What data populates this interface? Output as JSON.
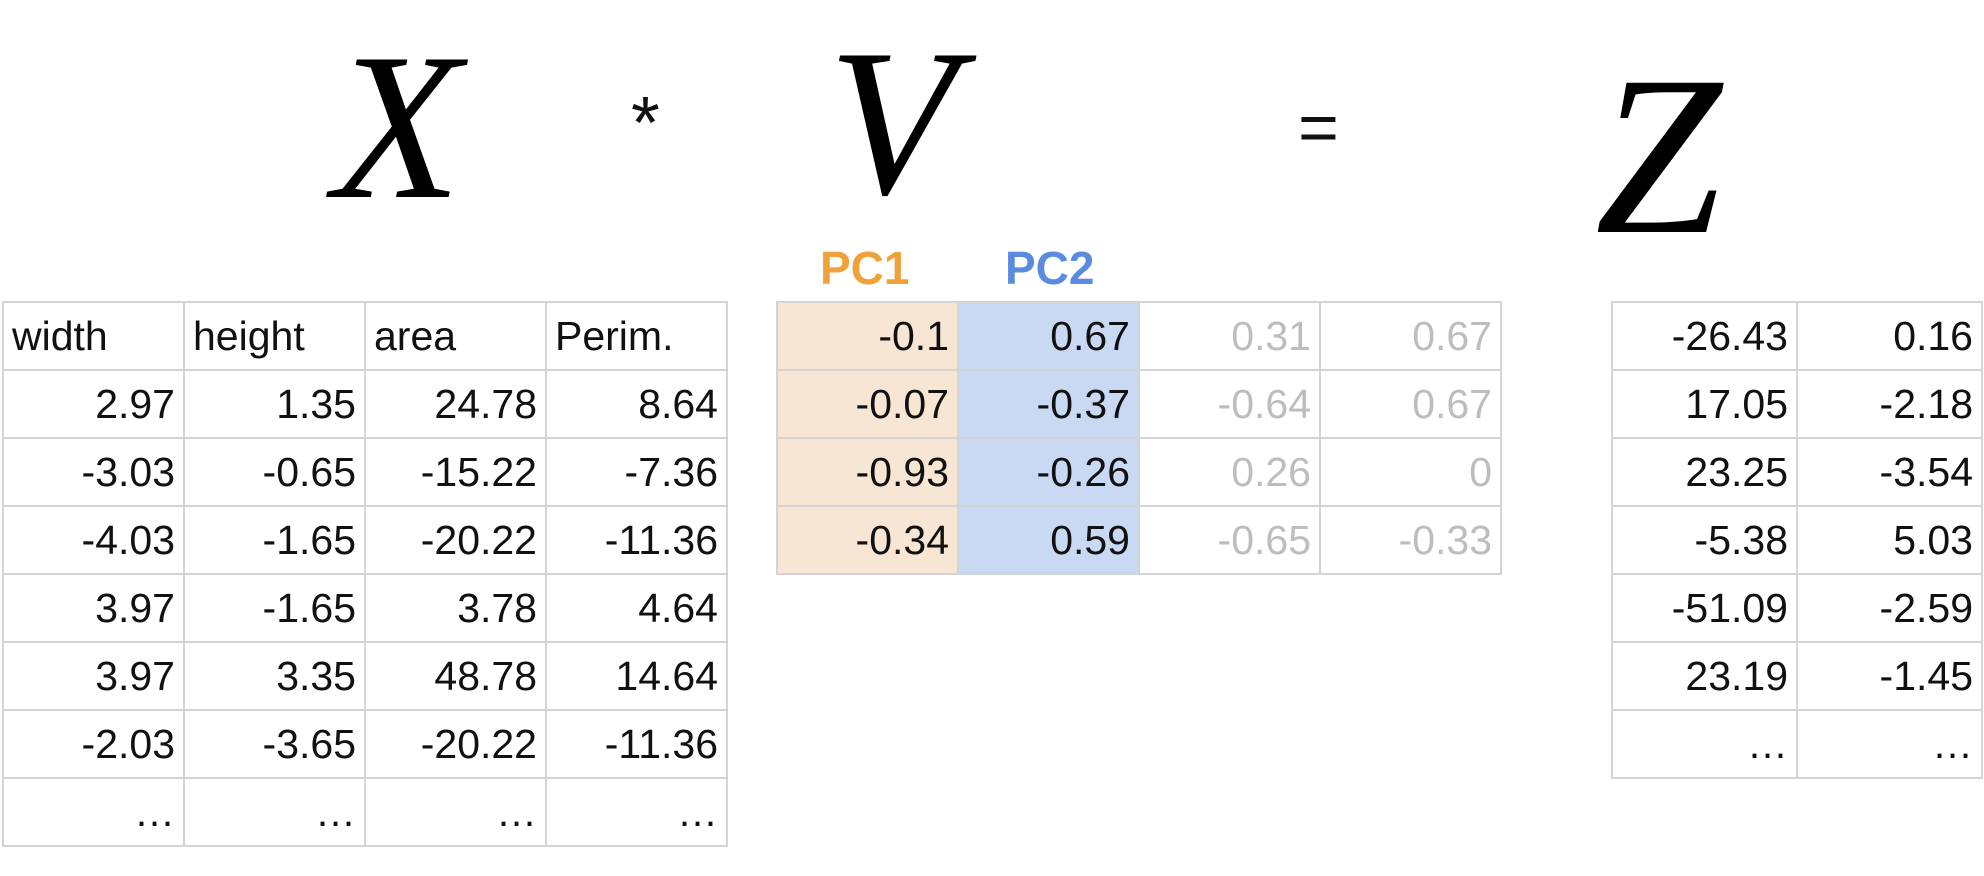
{
  "equation": {
    "lhs_symbol": "X",
    "operator": "*",
    "matrix_symbol": "V",
    "equals": "=",
    "rhs_symbol": "Z"
  },
  "pc_labels": {
    "pc1": "PC1",
    "pc2": "PC2"
  },
  "colors": {
    "pc1_text": "#f0a23a",
    "pc1_fill": "#f7e6d3",
    "pc2_text": "#5b8be0",
    "pc2_fill": "#c9d8f3",
    "muted_text": "#bdbdbd",
    "grid_line": "#d4d4d4"
  },
  "table_x": {
    "headers": [
      "width",
      "height",
      "area",
      "Perim."
    ],
    "rows": [
      [
        "2.97",
        "1.35",
        "24.78",
        "8.64"
      ],
      [
        "-3.03",
        "-0.65",
        "-15.22",
        "-7.36"
      ],
      [
        "-4.03",
        "-1.65",
        "-20.22",
        "-11.36"
      ],
      [
        "3.97",
        "-1.65",
        "3.78",
        "4.64"
      ],
      [
        "3.97",
        "3.35",
        "48.78",
        "14.64"
      ],
      [
        "-2.03",
        "-3.65",
        "-20.22",
        "-11.36"
      ],
      [
        "…",
        "…",
        "…",
        "…"
      ]
    ]
  },
  "table_v": {
    "rows": [
      [
        "-0.1",
        "0.67",
        "0.31",
        "0.67"
      ],
      [
        "-0.07",
        "-0.37",
        "-0.64",
        "0.67"
      ],
      [
        "-0.93",
        "-0.26",
        "0.26",
        "0"
      ],
      [
        "-0.34",
        "0.59",
        "-0.65",
        "-0.33"
      ]
    ]
  },
  "table_z": {
    "rows": [
      [
        "-26.43",
        "0.16"
      ],
      [
        "17.05",
        "-2.18"
      ],
      [
        "23.25",
        "-3.54"
      ],
      [
        "-5.38",
        "5.03"
      ],
      [
        "-51.09",
        "-2.59"
      ],
      [
        "23.19",
        "-1.45"
      ],
      [
        "…",
        "…"
      ]
    ]
  }
}
